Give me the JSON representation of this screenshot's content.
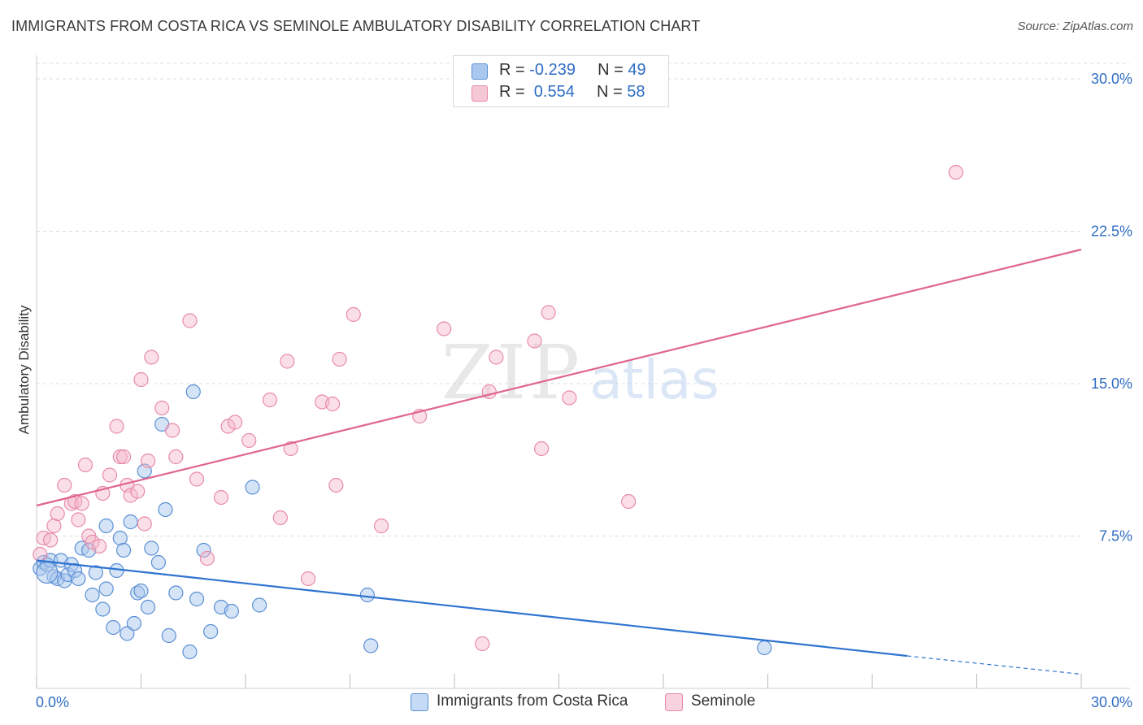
{
  "header": {
    "title": "IMMIGRANTS FROM COSTA RICA VS SEMINOLE AMBULATORY DISABILITY CORRELATION CHART",
    "source": "Source: ZipAtlas.com"
  },
  "watermark": {
    "zip": "ZIP",
    "atlas": "atlas"
  },
  "legend_top": {
    "rows": [
      {
        "r_label": "R = ",
        "r_value": "-0.239",
        "n_label": "N = ",
        "n_value": "49"
      },
      {
        "r_label": "R = ",
        "r_value": " 0.554",
        "n_label": "N = ",
        "n_value": "58"
      }
    ]
  },
  "legend_bottom": {
    "series_a": "Immigrants from Costa Rica",
    "series_b": "Seminole"
  },
  "colors": {
    "blue_fill": "#aac8ee",
    "blue_stroke": "#5a8fd4",
    "blue_line": "#2f74d0",
    "pink_fill": "#f5b8cc",
    "pink_stroke": "#e88aa8",
    "pink_line": "#e0648e",
    "axis_text": "#2f6dc4",
    "grid": "#dcdcdc"
  },
  "chart_data": {
    "type": "scatter",
    "title": "IMMIGRANTS FROM COSTA RICA VS SEMINOLE AMBULATORY DISABILITY CORRELATION CHART",
    "xlabel": "",
    "ylabel": "Ambulatory Disability",
    "xlim": [
      0,
      30
    ],
    "ylim": [
      0,
      30
    ],
    "x_tick_labels": [
      "0.0%",
      "30.0%"
    ],
    "y_ticks": [
      {
        "value": 7.5,
        "label": "7.5%"
      },
      {
        "value": 15.0,
        "label": "15.0%"
      },
      {
        "value": 22.5,
        "label": "22.5%"
      },
      {
        "value": 30.0,
        "label": "30.0%"
      }
    ],
    "series": [
      {
        "name": "Immigrants from Costa Rica",
        "color": "blue",
        "R": -0.239,
        "N": 49,
        "trend": {
          "x0": 0.0,
          "y0": 6.3,
          "x1": 25.0,
          "y1": 1.6,
          "dash_to_x": 30.0,
          "dash_to_y": 0.7
        },
        "points": [
          [
            0.1,
            5.9
          ],
          [
            0.2,
            6.2
          ],
          [
            0.3,
            6.1
          ],
          [
            0.4,
            6.3
          ],
          [
            0.5,
            5.5
          ],
          [
            0.6,
            5.4
          ],
          [
            0.7,
            6.3
          ],
          [
            0.8,
            5.3
          ],
          [
            0.9,
            5.6
          ],
          [
            1.0,
            6.1
          ],
          [
            1.1,
            5.8
          ],
          [
            1.2,
            5.4
          ],
          [
            1.3,
            6.9
          ],
          [
            1.5,
            6.8
          ],
          [
            1.6,
            4.6
          ],
          [
            1.7,
            5.7
          ],
          [
            1.9,
            3.9
          ],
          [
            2.0,
            4.9
          ],
          [
            2.0,
            8.0
          ],
          [
            2.2,
            3.0
          ],
          [
            2.3,
            5.8
          ],
          [
            2.4,
            7.4
          ],
          [
            2.5,
            6.8
          ],
          [
            2.6,
            2.7
          ],
          [
            2.7,
            8.2
          ],
          [
            2.8,
            3.2
          ],
          [
            2.9,
            4.7
          ],
          [
            3.0,
            4.8
          ],
          [
            3.1,
            10.7
          ],
          [
            3.2,
            4.0
          ],
          [
            3.3,
            6.9
          ],
          [
            3.5,
            6.2
          ],
          [
            3.6,
            13.0
          ],
          [
            3.7,
            8.8
          ],
          [
            3.8,
            2.6
          ],
          [
            4.0,
            4.7
          ],
          [
            4.4,
            1.8
          ],
          [
            4.5,
            14.6
          ],
          [
            4.6,
            4.4
          ],
          [
            4.8,
            6.8
          ],
          [
            5.0,
            2.8
          ],
          [
            5.3,
            4.0
          ],
          [
            5.6,
            3.8
          ],
          [
            6.2,
            9.9
          ],
          [
            6.4,
            4.1
          ],
          [
            9.5,
            4.6
          ],
          [
            9.6,
            2.1
          ],
          [
            20.9,
            2.0
          ],
          [
            0.3,
            5.7
          ]
        ]
      },
      {
        "name": "Seminole",
        "color": "pink",
        "R": 0.554,
        "N": 58,
        "trend": {
          "x0": 0.0,
          "y0": 9.0,
          "x1": 30.0,
          "y1": 21.6
        },
        "points": [
          [
            0.1,
            6.6
          ],
          [
            0.2,
            7.4
          ],
          [
            0.4,
            7.3
          ],
          [
            0.5,
            8.0
          ],
          [
            0.6,
            8.6
          ],
          [
            0.8,
            10.0
          ],
          [
            1.0,
            9.1
          ],
          [
            1.1,
            9.2
          ],
          [
            1.2,
            8.3
          ],
          [
            1.3,
            9.1
          ],
          [
            1.4,
            11.0
          ],
          [
            1.5,
            7.5
          ],
          [
            1.6,
            7.2
          ],
          [
            1.8,
            7.0
          ],
          [
            1.9,
            9.6
          ],
          [
            2.1,
            10.5
          ],
          [
            2.3,
            12.9
          ],
          [
            2.4,
            11.4
          ],
          [
            2.5,
            11.4
          ],
          [
            2.6,
            10.0
          ],
          [
            2.7,
            9.5
          ],
          [
            2.9,
            9.7
          ],
          [
            3.0,
            15.2
          ],
          [
            3.1,
            8.1
          ],
          [
            3.2,
            11.2
          ],
          [
            3.3,
            16.3
          ],
          [
            3.6,
            13.8
          ],
          [
            3.9,
            12.7
          ],
          [
            4.0,
            11.4
          ],
          [
            4.4,
            18.1
          ],
          [
            4.6,
            10.3
          ],
          [
            4.9,
            6.4
          ],
          [
            5.3,
            9.4
          ],
          [
            5.5,
            12.9
          ],
          [
            5.7,
            13.1
          ],
          [
            6.1,
            12.2
          ],
          [
            6.7,
            14.2
          ],
          [
            7.0,
            8.4
          ],
          [
            7.2,
            16.1
          ],
          [
            7.3,
            11.8
          ],
          [
            7.8,
            5.4
          ],
          [
            8.2,
            14.1
          ],
          [
            8.5,
            14.0
          ],
          [
            8.6,
            10.0
          ],
          [
            8.7,
            16.2
          ],
          [
            9.1,
            18.4
          ],
          [
            9.9,
            8.0
          ],
          [
            11.0,
            13.4
          ],
          [
            11.7,
            17.7
          ],
          [
            12.8,
            2.2
          ],
          [
            13.0,
            14.6
          ],
          [
            13.2,
            16.3
          ],
          [
            14.3,
            17.1
          ],
          [
            14.5,
            11.8
          ],
          [
            14.7,
            18.5
          ],
          [
            15.3,
            14.3
          ],
          [
            17.0,
            9.2
          ],
          [
            26.4,
            25.4
          ]
        ]
      }
    ]
  }
}
